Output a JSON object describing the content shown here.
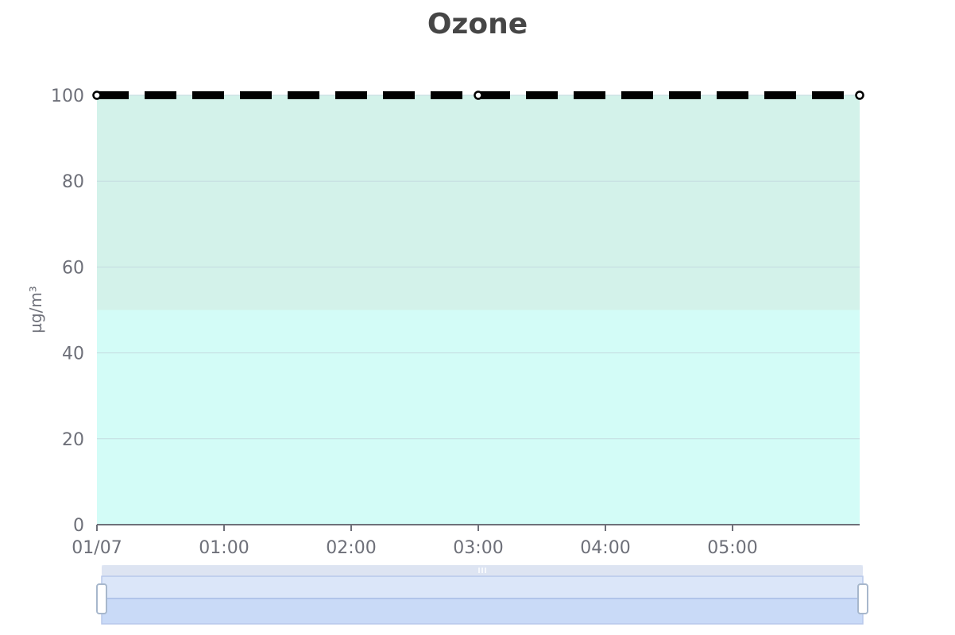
{
  "chart_data": {
    "type": "line",
    "title": "Ozone",
    "ylabel": "µg/m³",
    "xlabel": "",
    "ylim": [
      0,
      100
    ],
    "y_ticks": [
      "0",
      "20",
      "40",
      "60",
      "80",
      "100"
    ],
    "y_tick_values": [
      0,
      20,
      40,
      60,
      80,
      100
    ],
    "x_range_hours": [
      0,
      6
    ],
    "x_ticks": [
      "01/07",
      "01:00",
      "02:00",
      "03:00",
      "04:00",
      "05:00"
    ],
    "x_tick_hours": [
      0,
      1,
      2,
      3,
      4,
      5
    ],
    "grid": true,
    "bands": [
      {
        "from": 0,
        "to": 50,
        "color": "#d3fcf7"
      },
      {
        "from": 50,
        "to": 100,
        "color": "#d3f2ea"
      }
    ],
    "series": [
      {
        "x_hours": [
          0,
          3,
          6
        ],
        "values": [
          100,
          100,
          100
        ],
        "color": "#000000",
        "style": "dashed"
      }
    ],
    "data_zoom": {
      "start_percent": 0,
      "end_percent": 100
    }
  }
}
